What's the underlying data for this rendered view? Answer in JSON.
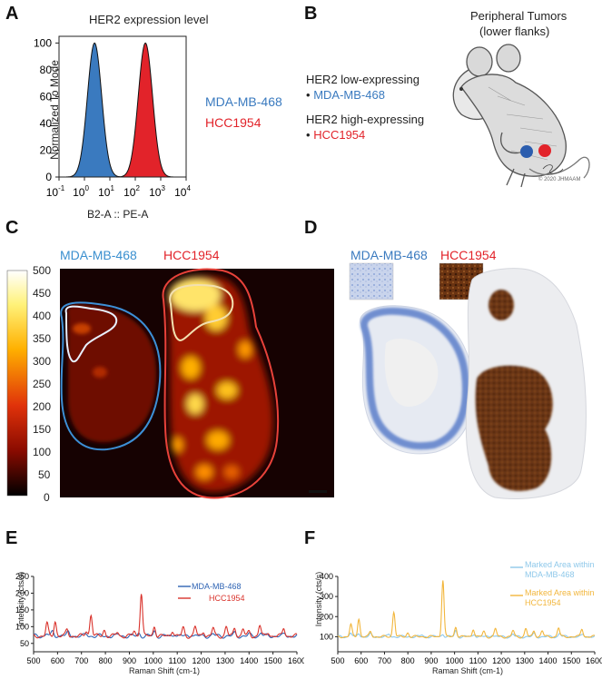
{
  "panels": {
    "a": {
      "label": "A",
      "chart_data": {
        "type": "area",
        "title": "HER2 expression level",
        "xlabel": "B2-A :: PE-A",
        "ylabel": "Normalized To Mode",
        "xscale": "log",
        "xlim": [
          0.1,
          10000
        ],
        "ylim": [
          0,
          105
        ],
        "x_tick_labels": [
          "10-1",
          "100",
          "101",
          "102",
          "103",
          "104"
        ],
        "y_ticks": [
          0,
          20,
          40,
          60,
          80,
          100
        ],
        "series": [
          {
            "name": "MDA-MB-468",
            "color": "#3a7abf",
            "peak_x": 2.5,
            "peak_y": 100
          },
          {
            "name": "HCC1954",
            "color": "#e2232a",
            "peak_x": 250,
            "peak_y": 100
          }
        ]
      }
    },
    "b": {
      "label": "B",
      "title_line1": "Peripheral Tumors",
      "title_line2": "(lower flanks)",
      "low_heading": "HER2 low-expressing",
      "low_item": "MDA-MB-468",
      "high_heading": "HER2 high-expressing",
      "high_item": "HCC1954",
      "bullet": "•",
      "signature": "© 2020 JHMAAM"
    },
    "c": {
      "label": "C",
      "left_label": "MDA-MB-468",
      "right_label": "HCC1954",
      "colorbar_ticks": [
        "500",
        "450",
        "400",
        "350",
        "300",
        "250",
        "200",
        "150",
        "100",
        "50",
        "0"
      ]
    },
    "d": {
      "label": "D",
      "left_label": "MDA-MB-468",
      "right_label": "HCC1954"
    },
    "e": {
      "label": "E",
      "chart_data": {
        "type": "line",
        "xlabel": "Raman Shift (cm-1)",
        "ylabel": "Intensity (cts/s)",
        "xlim": [
          500,
          1600
        ],
        "ylim": [
          25,
          250
        ],
        "x_ticks": [
          500,
          600,
          700,
          800,
          900,
          1000,
          1100,
          1200,
          1300,
          1400,
          1500,
          1600
        ],
        "y_ticks": [
          50,
          100,
          150,
          200,
          250
        ],
        "series": [
          {
            "name": "MDA-MB-468",
            "color": "#2f64b4",
            "baseline": 72,
            "peaks": [
              [
                555,
                8
              ],
              [
                580,
                12
              ],
              [
                620,
                6
              ],
              [
                645,
                10
              ],
              [
                720,
                6
              ],
              [
                855,
                5
              ],
              [
                940,
                8
              ],
              [
                1005,
                14
              ],
              [
                1090,
                8
              ],
              [
                1160,
                6
              ],
              [
                1250,
                6
              ],
              [
                1340,
                8
              ],
              [
                1400,
                5
              ],
              [
                1450,
                10
              ],
              [
                1550,
                6
              ]
            ]
          },
          {
            "name": "HCC1954",
            "color": "#d9322b",
            "baseline": 72,
            "peaks": [
              [
                556,
                38
              ],
              [
                590,
                45
              ],
              [
                640,
                20
              ],
              [
                720,
                15
              ],
              [
                740,
                65
              ],
              [
                795,
                18
              ],
              [
                850,
                12
              ],
              [
                920,
                15
              ],
              [
                950,
                130
              ],
              [
                1005,
                30
              ],
              [
                1080,
                18
              ],
              [
                1125,
                25
              ],
              [
                1175,
                28
              ],
              [
                1210,
                15
              ],
              [
                1250,
                24
              ],
              [
                1305,
                28
              ],
              [
                1340,
                25
              ],
              [
                1375,
                22
              ],
              [
                1400,
                12
              ],
              [
                1445,
                33
              ],
              [
                1480,
                12
              ],
              [
                1545,
                25
              ]
            ]
          }
        ]
      }
    },
    "f": {
      "label": "F",
      "chart_data": {
        "type": "line",
        "xlabel": "Raman Shift (cm-1)",
        "ylabel": "Intensity (cts/s)",
        "xlim": [
          500,
          1600
        ],
        "ylim": [
          25,
          400
        ],
        "x_ticks": [
          500,
          600,
          700,
          800,
          900,
          1000,
          1100,
          1200,
          1300,
          1400,
          1500,
          1600
        ],
        "y_ticks": [
          100,
          200,
          300,
          400
        ],
        "series": [
          {
            "name": "Marked Area within MDA-MB-468",
            "name_line1": "Marked Area within",
            "name_line2": "MDA-MB-468",
            "color": "#8ec8ea",
            "baseline": 100,
            "peaks": [
              [
                555,
                20
              ],
              [
                590,
                18
              ],
              [
                640,
                12
              ],
              [
                720,
                12
              ],
              [
                860,
                10
              ],
              [
                950,
                14
              ],
              [
                1005,
                30
              ],
              [
                1085,
                14
              ],
              [
                1160,
                12
              ],
              [
                1250,
                12
              ],
              [
                1340,
                14
              ],
              [
                1450,
                18
              ],
              [
                1550,
                10
              ]
            ]
          },
          {
            "name": "Marked Area within HCC1954",
            "name_line1": "Marked Area within",
            "name_line2": "HCC1954",
            "color": "#f2b63c",
            "baseline": 100,
            "peaks": [
              [
                556,
                60
              ],
              [
                590,
                90
              ],
              [
                640,
                25
              ],
              [
                740,
                125
              ],
              [
                800,
                20
              ],
              [
                950,
                285
              ],
              [
                1005,
                50
              ],
              [
                1080,
                40
              ],
              [
                1125,
                25
              ],
              [
                1175,
                40
              ],
              [
                1250,
                30
              ],
              [
                1305,
                40
              ],
              [
                1340,
                30
              ],
              [
                1375,
                30
              ],
              [
                1445,
                45
              ],
              [
                1545,
                40
              ]
            ]
          }
        ]
      }
    }
  }
}
